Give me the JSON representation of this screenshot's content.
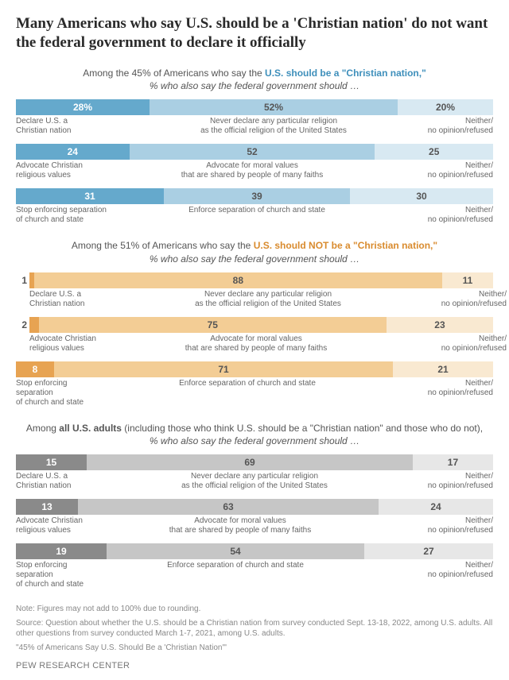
{
  "title": "Many Americans who say U.S. should be a 'Christian nation' do not want the federal government to declare it officially",
  "groups": [
    {
      "header_pre": "Among the 45% of Americans who say the ",
      "header_hl": "U.S. should be a \"Christian nation,\"",
      "header_hl_color": "#3e8fbb",
      "line2": "% who also say the federal government should …",
      "colors": [
        "#65a9cc",
        "#aacfe3",
        "#d8e9f2"
      ],
      "text_colors": [
        "#ffffff",
        "#555555",
        "#555555"
      ],
      "rows": [
        {
          "values": [
            28,
            52,
            20
          ],
          "value_labels": [
            "28%",
            "52%",
            "20%"
          ],
          "labels": [
            "Declare U.S. a\nChristian nation",
            "Never declare any particular religion\nas the official religion of the United States",
            "Neither/\nno opinion/refused"
          ]
        },
        {
          "values": [
            24,
            52,
            25
          ],
          "value_labels": [
            "24",
            "52",
            "25"
          ],
          "labels": [
            "Advocate Christian\nreligious values",
            "Advocate for moral values\nthat are shared by people of many faiths",
            "Neither/\nno opinion/refused"
          ]
        },
        {
          "values": [
            31,
            39,
            30
          ],
          "value_labels": [
            "31",
            "39",
            "30"
          ],
          "labels": [
            "Stop enforcing separation\nof church and state",
            "Enforce separation of church and state",
            "Neither/\nno opinion/refused"
          ]
        }
      ]
    },
    {
      "header_pre": "Among the 51% of Americans who say the ",
      "header_hl": "U.S. should NOT be a \"Christian nation,\"",
      "header_hl_color": "#d98b2e",
      "line2": "% who also say the federal government should …",
      "colors": [
        "#e7a352",
        "#f3cd95",
        "#f9e9d1"
      ],
      "text_colors": [
        "#ffffff",
        "#555555",
        "#555555"
      ],
      "rows": [
        {
          "values": [
            1,
            88,
            11
          ],
          "value_labels": [
            "1",
            "88",
            "11"
          ],
          "labels": [
            "Declare U.S. a\nChristian nation",
            "Never declare any particular religion\nas the official religion of the United States",
            "Neither/\nno opinion/refused"
          ]
        },
        {
          "values": [
            2,
            75,
            23
          ],
          "value_labels": [
            "2",
            "75",
            "23"
          ],
          "labels": [
            "Advocate Christian\nreligious values",
            "Advocate for moral values\nthat are shared by people of many faiths",
            "Neither/\nno opinion/refused"
          ]
        },
        {
          "values": [
            8,
            71,
            21
          ],
          "value_labels": [
            "8",
            "71",
            "21"
          ],
          "labels": [
            "Stop enforcing separation\nof church and state",
            "Enforce separation of church and state",
            "Neither/\nno opinion/refused"
          ]
        }
      ]
    },
    {
      "header_pre": "Among ",
      "header_hl": "all U.S. adults",
      "header_hl_color": "#555555",
      "header_post": " (including those who think U.S. should be a \"Christian nation\" and those who do not),",
      "line2": "% who also say the federal government should …",
      "colors": [
        "#8a8a8a",
        "#c6c6c6",
        "#e7e7e7"
      ],
      "text_colors": [
        "#ffffff",
        "#555555",
        "#555555"
      ],
      "rows": [
        {
          "values": [
            15,
            69,
            17
          ],
          "value_labels": [
            "15",
            "69",
            "17"
          ],
          "labels": [
            "Declare U.S. a\nChristian nation",
            "Never declare any particular religion\nas the official religion of the United States",
            "Neither/\nno opinion/refused"
          ]
        },
        {
          "values": [
            13,
            63,
            24
          ],
          "value_labels": [
            "13",
            "63",
            "24"
          ],
          "labels": [
            "Advocate Christian\nreligious values",
            "Advocate for moral values\nthat are shared by people of many faiths",
            "Neither/\nno opinion/refused"
          ]
        },
        {
          "values": [
            19,
            54,
            27
          ],
          "value_labels": [
            "19",
            "54",
            "27"
          ],
          "labels": [
            "Stop enforcing separation\nof church and state",
            "Enforce separation of church and state",
            "Neither/\nno opinion/refused"
          ]
        }
      ]
    }
  ],
  "note1": "Note: Figures may not add to 100% due to rounding.",
  "note2": "Source: Question about whether the U.S. should be a Christian nation from survey conducted Sept. 13-18, 2022, among U.S. adults. All other questions from survey conducted March 1-7, 2021, among U.S. adults.",
  "note3": "\"45% of Americans Say U.S. Should Be a 'Christian Nation'\"",
  "footer": "PEW RESEARCH CENTER"
}
